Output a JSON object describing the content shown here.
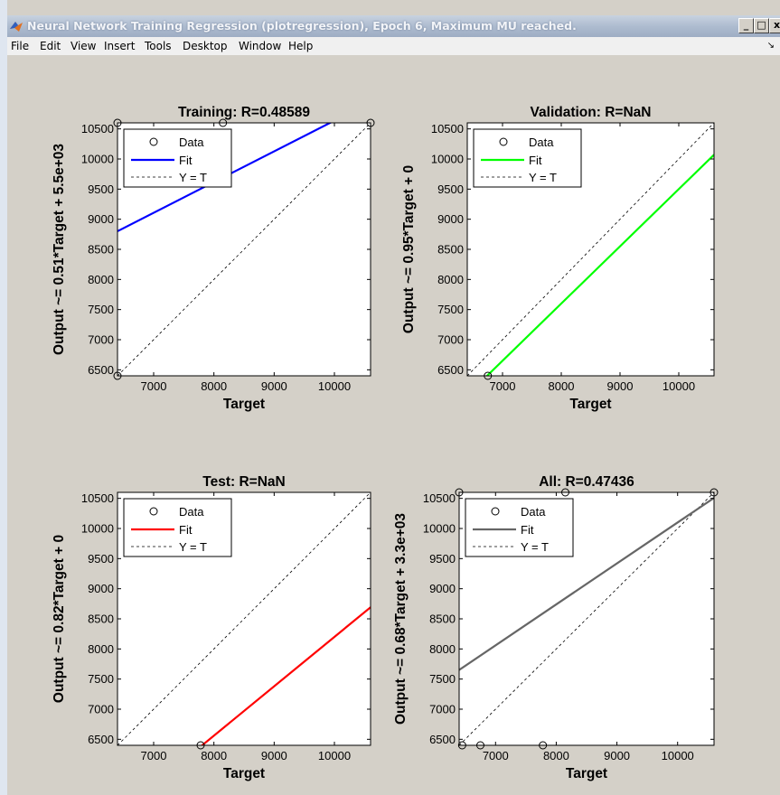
{
  "window": {
    "title": "Neural Network Training Regression (plotregression), Epoch 6, Maximum MU reached.",
    "buttons": {
      "minimize": "_",
      "maximize": "□",
      "close": "x"
    }
  },
  "menu": {
    "items": [
      "File",
      "Edit",
      "View",
      "Insert",
      "Tools",
      "Desktop",
      "Window",
      "Help"
    ],
    "arrow": "↘"
  },
  "colors": {
    "figure_bg": "#d4d0c8",
    "axes_bg": "#ffffff",
    "training_fit": "#0000ff",
    "validation_fit": "#00ff00",
    "test_fit": "#ff0000",
    "all_fit": "#666666"
  },
  "chart_data": [
    {
      "type": "scatter",
      "title": "Training: R=0.48589",
      "xlabel": "Target",
      "ylabel": "Output ~= 0.51*Target + 5.5e+03",
      "xlim": [
        6400,
        10600
      ],
      "ylim": [
        6400,
        10600
      ],
      "xticks": [
        7000,
        8000,
        9000,
        10000
      ],
      "yticks": [
        6500,
        7000,
        7500,
        8000,
        8500,
        9000,
        9500,
        10000,
        10500
      ],
      "data_points": [
        [
          6400,
          6400
        ],
        [
          6400,
          10600
        ],
        [
          8150,
          10600
        ],
        [
          10600,
          10600
        ]
      ],
      "fit": {
        "slope": 0.51,
        "intercept": 5537,
        "color": "#0000ff"
      },
      "legend": [
        "Data",
        "Fit",
        "Y = T"
      ],
      "legend_position": "top-left"
    },
    {
      "type": "scatter",
      "title": "Validation: R=NaN",
      "xlabel": "Target",
      "ylabel": "Output ~= 0.95*Target + 0",
      "xlim": [
        6400,
        10600
      ],
      "ylim": [
        6400,
        10600
      ],
      "xticks": [
        7000,
        8000,
        9000,
        10000
      ],
      "yticks": [
        6500,
        7000,
        7500,
        8000,
        8500,
        9000,
        9500,
        10000,
        10500
      ],
      "data_points": [
        [
          6750,
          6400
        ]
      ],
      "fit": {
        "slope": 0.95,
        "intercept": 0,
        "color": "#00ff00"
      },
      "legend": [
        "Data",
        "Fit",
        "Y = T"
      ],
      "legend_position": "top-left"
    },
    {
      "type": "scatter",
      "title": "Test: R=NaN",
      "xlabel": "Target",
      "ylabel": "Output ~= 0.82*Target + 0",
      "xlim": [
        6400,
        10600
      ],
      "ylim": [
        6400,
        10600
      ],
      "xticks": [
        7000,
        8000,
        9000,
        10000
      ],
      "yticks": [
        6500,
        7000,
        7500,
        8000,
        8500,
        9000,
        9500,
        10000,
        10500
      ],
      "data_points": [
        [
          7780,
          6400
        ]
      ],
      "fit": {
        "slope": 0.82,
        "intercept": 0,
        "color": "#ff0000"
      },
      "legend": [
        "Data",
        "Fit",
        "Y = T"
      ],
      "legend_position": "top-left"
    },
    {
      "type": "scatter",
      "title": "All: R=0.47436",
      "xlabel": "Target",
      "ylabel": "Output ~= 0.68*Target + 3.3e+03",
      "xlim": [
        6400,
        10600
      ],
      "ylim": [
        6400,
        10600
      ],
      "xticks": [
        7000,
        8000,
        9000,
        10000
      ],
      "yticks": [
        6500,
        7000,
        7500,
        8000,
        8500,
        9000,
        9500,
        10000,
        10500
      ],
      "data_points": [
        [
          6400,
          10600
        ],
        [
          8150,
          10600
        ],
        [
          10600,
          10600
        ],
        [
          6450,
          6400
        ],
        [
          6750,
          6400
        ],
        [
          7780,
          6400
        ]
      ],
      "fit": {
        "slope": 0.68,
        "intercept": 3300,
        "color": "#666666"
      },
      "legend": [
        "Data",
        "Fit",
        "Y = T"
      ],
      "legend_position": "top-left"
    }
  ]
}
